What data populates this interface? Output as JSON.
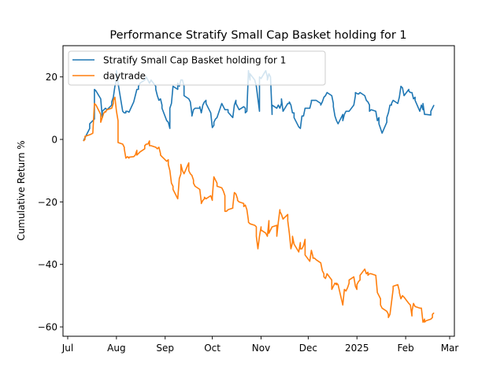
{
  "chart_data": {
    "type": "line",
    "title": "Performance Stratify Small Cap Basket holding for 1",
    "xlabel": "",
    "ylabel": "Cumulative Return %",
    "x_start": "2024-07-11",
    "x_end": "2025-02-19",
    "xlim": [
      "2024-06-28",
      "2025-03-04"
    ],
    "ylim": [
      -63,
      30
    ],
    "x_ticks": [
      {
        "date": "2024-07-01",
        "label": "Jul"
      },
      {
        "date": "2024-08-01",
        "label": "Aug"
      },
      {
        "date": "2024-09-01",
        "label": "Sep"
      },
      {
        "date": "2024-10-01",
        "label": "Oct"
      },
      {
        "date": "2024-11-01",
        "label": "Nov"
      },
      {
        "date": "2024-12-01",
        "label": "Dec"
      },
      {
        "date": "2025-01-01",
        "label": "2025"
      },
      {
        "date": "2025-02-01",
        "label": "Feb"
      },
      {
        "date": "2025-03-01",
        "label": "Mar"
      }
    ],
    "y_ticks": [
      20,
      0,
      -20,
      -40,
      -60
    ],
    "legend": {
      "placement": "upper-left",
      "entries": [
        "Stratify Small Cap Basket holding for 1",
        "daytrade"
      ]
    },
    "series": [
      {
        "name": "Stratify Small Cap Basket holding for 1",
        "color": "#1f77b4",
        "values": [
          -0.5,
          0.5,
          3.5,
          5,
          5.5,
          6,
          6.5,
          16,
          15.5,
          13,
          7,
          9,
          9.5,
          10,
          9.5,
          11,
          12,
          13.5,
          17,
          19,
          22,
          18,
          9,
          8.5,
          8.5,
          9,
          9,
          8.7,
          12,
          12,
          14,
          16,
          16,
          17,
          18,
          19,
          20,
          19,
          19,
          18,
          19,
          17,
          16,
          14,
          12.5,
          13,
          11,
          10,
          6,
          5.5,
          3.5,
          10,
          11.5,
          17,
          16,
          18,
          17,
          19,
          19,
          17,
          14,
          13,
          12,
          8,
          7.5,
          9.5,
          10,
          10,
          10.5,
          8.5,
          11,
          12,
          12.5,
          11.5,
          8.5,
          3.8,
          4.5,
          5.5,
          6.5,
          7,
          11.5,
          10.5,
          10.5,
          9.5,
          9.5,
          9.5,
          8.7,
          7,
          11,
          12.5,
          11.5,
          10.5,
          9.5,
          10.5,
          10,
          8.5,
          9,
          22,
          19,
          21,
          19,
          17,
          13,
          9,
          20,
          19.5,
          22,
          20,
          19,
          21,
          20,
          8,
          11,
          10,
          11,
          10,
          11.5,
          13,
          9,
          11.5,
          11.5,
          12,
          11,
          8.5,
          8.5,
          7,
          4,
          3.5,
          7.5,
          7.5,
          7.5,
          10,
          10,
          12,
          12.5,
          12.5,
          12.5,
          12.5,
          11.5,
          11,
          12,
          13.5,
          14,
          14,
          15,
          14,
          11.5,
          10.5,
          7.5,
          6,
          5,
          8,
          6,
          8,
          9,
          9,
          9,
          9,
          11,
          14,
          15,
          14.7,
          14.5,
          15,
          14,
          14,
          12.5,
          12,
          11,
          9,
          9.5,
          9,
          6,
          7,
          5,
          3.5,
          2,
          5.5,
          7,
          8.5,
          11,
          11,
          11.5,
          12.5,
          11.5,
          13.5,
          17,
          17,
          16.5,
          14,
          16,
          15.5,
          15,
          15,
          13,
          13.5,
          12.5,
          9,
          11,
          9.5,
          11.5,
          8,
          8,
          7.8,
          9,
          10,
          11
        ]
      },
      {
        "name": "daytrade",
        "color": "#ff7f0e",
        "values": [
          -0.5,
          0,
          1,
          1.5,
          1.7,
          2,
          2.2,
          11.5,
          11,
          8,
          5.5,
          7,
          8.5,
          9,
          8.7,
          9.5,
          10,
          11.5,
          12.5,
          13.5,
          9,
          6,
          -1,
          -1.5,
          -2.5,
          -3,
          -6,
          -5.5,
          -6,
          -5.7,
          -5.5,
          -5,
          -3.5,
          -5,
          -4.5,
          -4,
          -3,
          -2,
          -1.5,
          -1.5,
          -0.5,
          -2,
          -2,
          -2.5,
          -3,
          -3,
          -2.5,
          -4.5,
          -5,
          -5.5,
          -7,
          -6.5,
          -8,
          -10,
          -14,
          -15,
          -16,
          -19,
          -12.5,
          -11,
          -8,
          -10,
          -11,
          -7.5,
          -10,
          -11,
          -11.5,
          -13,
          -14,
          -15,
          -16,
          -20,
          -20.5,
          -19.5,
          -19,
          -18.5,
          -19,
          -18,
          -19.5,
          -18.5,
          -12,
          -13,
          -14,
          -15,
          -15.5,
          -16.5,
          -18,
          -23,
          -23,
          -22.5,
          -22,
          -21.5,
          -17,
          -17.5,
          -19,
          -19.5,
          -20,
          -20.5,
          -21.5,
          -21,
          -22.5,
          -26,
          -26.5,
          -27,
          -27.5,
          -28,
          -31,
          -35,
          -31,
          -28,
          -29,
          -30,
          -31,
          -26,
          -30,
          -29,
          -28,
          -27.5,
          -31,
          -26.5,
          -22.5,
          -23,
          -24,
          -25.5,
          -24,
          -26,
          -30,
          -35,
          -33,
          -31,
          -33.5,
          -36,
          -33,
          -35,
          -35,
          -34,
          -32,
          -37,
          -39,
          -35.5,
          -37.5,
          -38,
          -38,
          -38.5,
          -38.5,
          -39.5,
          -42,
          -43,
          -44,
          -44.5,
          -43,
          -45,
          -48,
          -47,
          -46,
          -46.5,
          -46,
          -46.5,
          -53,
          -48,
          -48,
          -48.5,
          -47.5,
          -46,
          -45,
          -44,
          -47,
          -48,
          -46.5,
          -45.5,
          -45,
          -43.5,
          -41.5,
          -43,
          -42.5,
          -43.5,
          -43,
          -43,
          -43.5,
          -43.5,
          -49,
          -50,
          -51,
          -53,
          -54,
          -55,
          -56,
          -57,
          -56,
          -52,
          -48,
          -47,
          -46.5,
          -48.5,
          -49,
          -51,
          -50,
          -50.5,
          -50.5,
          -52.5,
          -53,
          -56.5,
          -55,
          -52.5,
          -53.5,
          -54,
          -54,
          -54,
          -58.5,
          -57.5,
          -58.5,
          -58,
          -57.5,
          -57,
          -56,
          -55.5
        ]
      }
    ]
  }
}
